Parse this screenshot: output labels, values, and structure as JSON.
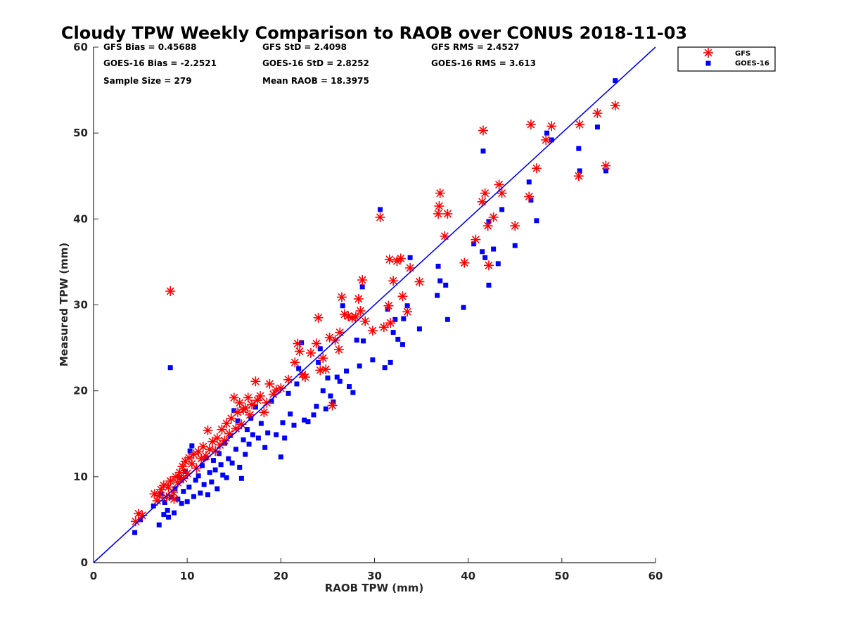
{
  "chart_data": {
    "type": "scatter",
    "title": "Cloudy TPW Weekly Comparison to RAOB over CONUS 2018-11-03",
    "xlabel": "RAOB TPW (mm)",
    "ylabel": "Measured TPW (mm)",
    "xlim": [
      0,
      60
    ],
    "ylim": [
      0,
      60
    ],
    "xticks": [
      "0",
      "10",
      "20",
      "30",
      "40",
      "50",
      "60"
    ],
    "yticks": [
      "0",
      "10",
      "20",
      "30",
      "40",
      "50",
      "60"
    ],
    "grid": false,
    "legend_position": "outside-top-right",
    "reference_line": {
      "from": [
        0,
        0
      ],
      "to": [
        60,
        60
      ],
      "color": "#0000ff"
    },
    "stats": [
      [
        "GFS Bias = 0.45688",
        "GFS StD = 2.4098",
        "GFS RMS = 2.4527"
      ],
      [
        "GOES-16 Bias = -2.2521",
        "GOES-16 StD = 2.8252",
        "GOES-16 RMS = 3.613"
      ],
      [
        "Sample Size = 279",
        "Mean RAOB = 18.3975",
        ""
      ]
    ],
    "series": [
      {
        "name": "GFS",
        "marker": "asterisk",
        "color": "#ff0000",
        "points": [
          [
            4.5,
            4.8
          ],
          [
            4.8,
            5.7
          ],
          [
            5.2,
            5.5
          ],
          [
            6.5,
            8.0
          ],
          [
            6.8,
            7.2
          ],
          [
            7.0,
            7.8
          ],
          [
            7.2,
            8.5
          ],
          [
            7.5,
            9.0
          ],
          [
            7.8,
            7.6
          ],
          [
            8.0,
            8.8
          ],
          [
            8.2,
            9.5
          ],
          [
            8.5,
            8.2
          ],
          [
            8.6,
            7.4
          ],
          [
            8.8,
            10.0
          ],
          [
            9.0,
            9.3
          ],
          [
            9.2,
            10.5
          ],
          [
            9.5,
            11.2
          ],
          [
            9.6,
            9.8
          ],
          [
            9.8,
            11.8
          ],
          [
            10.0,
            10.4
          ],
          [
            10.2,
            12.2
          ],
          [
            10.5,
            11.5
          ],
          [
            10.7,
            12.6
          ],
          [
            11.0,
            11.0
          ],
          [
            11.2,
            12.9
          ],
          [
            11.5,
            12.1
          ],
          [
            11.7,
            13.5
          ],
          [
            12.0,
            12.4
          ],
          [
            12.2,
            15.4
          ],
          [
            12.4,
            13.2
          ],
          [
            12.7,
            14.1
          ],
          [
            13.0,
            13.0
          ],
          [
            13.2,
            14.5
          ],
          [
            13.5,
            13.7
          ],
          [
            13.7,
            15.5
          ],
          [
            14.0,
            14.2
          ],
          [
            14.2,
            16.2
          ],
          [
            14.5,
            15.0
          ],
          [
            14.7,
            16.8
          ],
          [
            15.0,
            19.2
          ],
          [
            15.2,
            15.6
          ],
          [
            15.4,
            17.5
          ],
          [
            15.6,
            18.6
          ],
          [
            15.8,
            16.1
          ],
          [
            16.0,
            17.8
          ],
          [
            16.2,
            18.0
          ],
          [
            16.5,
            19.2
          ],
          [
            16.7,
            17.2
          ],
          [
            16.9,
            18.4
          ],
          [
            17.3,
            21.1
          ],
          [
            17.5,
            18.9
          ],
          [
            17.8,
            19.4
          ],
          [
            18.2,
            17.5
          ],
          [
            18.5,
            18.6
          ],
          [
            18.8,
            20.8
          ],
          [
            19.2,
            19.6
          ],
          [
            19.5,
            20.1
          ],
          [
            20.0,
            20.3
          ],
          [
            8.2,
            31.6
          ],
          [
            20.8,
            21.3
          ],
          [
            21.5,
            23.3
          ],
          [
            21.8,
            25.5
          ],
          [
            22.0,
            24.6
          ],
          [
            22.3,
            21.9
          ],
          [
            22.6,
            21.6
          ],
          [
            23.2,
            24.4
          ],
          [
            23.8,
            25.5
          ],
          [
            24.0,
            28.5
          ],
          [
            24.2,
            22.4
          ],
          [
            24.5,
            23.8
          ],
          [
            24.8,
            22.5
          ],
          [
            25.2,
            26.2
          ],
          [
            25.5,
            18.3
          ],
          [
            25.8,
            25.9
          ],
          [
            26.2,
            24.8
          ],
          [
            26.3,
            26.8
          ],
          [
            26.5,
            30.9
          ],
          [
            26.8,
            28.9
          ],
          [
            27.2,
            28.7
          ],
          [
            27.6,
            28.5
          ],
          [
            28.0,
            28.6
          ],
          [
            28.3,
            30.7
          ],
          [
            28.5,
            29.3
          ],
          [
            28.7,
            32.9
          ],
          [
            29.0,
            28.1
          ],
          [
            29.8,
            27.0
          ],
          [
            30.6,
            40.2
          ],
          [
            31.0,
            27.4
          ],
          [
            31.5,
            29.9
          ],
          [
            31.6,
            35.3
          ],
          [
            31.7,
            27.9
          ],
          [
            32.0,
            32.8
          ],
          [
            32.4,
            35.1
          ],
          [
            32.8,
            35.4
          ],
          [
            33.0,
            31.0
          ],
          [
            33.5,
            29.2
          ],
          [
            33.8,
            34.3
          ],
          [
            34.8,
            32.7
          ],
          [
            36.8,
            40.6
          ],
          [
            36.9,
            41.5
          ],
          [
            37.0,
            43.0
          ],
          [
            37.5,
            38.0
          ],
          [
            37.8,
            40.6
          ],
          [
            39.6,
            34.9
          ],
          [
            40.8,
            37.6
          ],
          [
            41.5,
            42.0
          ],
          [
            41.6,
            50.3
          ],
          [
            41.8,
            43.0
          ],
          [
            42.1,
            39.2
          ],
          [
            42.2,
            34.6
          ],
          [
            42.7,
            40.2
          ],
          [
            43.3,
            44.0
          ],
          [
            43.6,
            43.0
          ],
          [
            45.0,
            39.2
          ],
          [
            46.5,
            42.6
          ],
          [
            46.7,
            51.0
          ],
          [
            47.3,
            45.9
          ],
          [
            48.3,
            49.2
          ],
          [
            48.9,
            50.8
          ],
          [
            51.8,
            45.0
          ],
          [
            51.9,
            51.0
          ],
          [
            53.8,
            52.3
          ],
          [
            54.7,
            46.2
          ],
          [
            55.7,
            53.2
          ]
        ]
      },
      {
        "name": "GOES-16",
        "marker": "square",
        "color": "#0000ff",
        "points": [
          [
            4.4,
            3.5
          ],
          [
            5.0,
            5.0
          ],
          [
            6.4,
            6.6
          ],
          [
            7.0,
            4.4
          ],
          [
            7.2,
            8.0
          ],
          [
            7.5,
            5.6
          ],
          [
            7.6,
            7.0
          ],
          [
            7.9,
            6.1
          ],
          [
            8.0,
            5.3
          ],
          [
            8.2,
            22.7
          ],
          [
            8.3,
            7.6
          ],
          [
            8.6,
            5.8
          ],
          [
            8.7,
            8.6
          ],
          [
            9.0,
            7.4
          ],
          [
            9.2,
            9.9
          ],
          [
            9.4,
            6.9
          ],
          [
            9.6,
            8.3
          ],
          [
            9.8,
            10.6
          ],
          [
            10.0,
            7.1
          ],
          [
            10.2,
            8.8
          ],
          [
            10.3,
            13.0
          ],
          [
            10.5,
            13.6
          ],
          [
            10.7,
            7.7
          ],
          [
            10.9,
            9.6
          ],
          [
            11.2,
            10.1
          ],
          [
            11.4,
            8.1
          ],
          [
            11.6,
            11.3
          ],
          [
            11.8,
            9.1
          ],
          [
            12.0,
            12.2
          ],
          [
            12.2,
            7.9
          ],
          [
            12.4,
            10.5
          ],
          [
            12.6,
            9.4
          ],
          [
            12.8,
            11.9
          ],
          [
            13.0,
            10.8
          ],
          [
            13.2,
            8.6
          ],
          [
            13.4,
            12.7
          ],
          [
            13.6,
            11.4
          ],
          [
            13.8,
            10.2
          ],
          [
            14.0,
            13.9
          ],
          [
            14.2,
            9.9
          ],
          [
            14.4,
            12.1
          ],
          [
            14.6,
            14.8
          ],
          [
            14.8,
            11.6
          ],
          [
            15.0,
            17.7
          ],
          [
            15.2,
            13.2
          ],
          [
            15.4,
            16.5
          ],
          [
            15.6,
            11.1
          ],
          [
            15.8,
            9.8
          ],
          [
            16.0,
            14.3
          ],
          [
            16.2,
            12.6
          ],
          [
            16.4,
            15.5
          ],
          [
            16.6,
            13.8
          ],
          [
            16.8,
            16.8
          ],
          [
            17.0,
            14.9
          ],
          [
            17.3,
            18.1
          ],
          [
            17.6,
            14.5
          ],
          [
            17.9,
            16.2
          ],
          [
            18.3,
            13.4
          ],
          [
            18.6,
            15.1
          ],
          [
            19.0,
            18.8
          ],
          [
            19.5,
            14.9
          ],
          [
            20.0,
            12.3
          ],
          [
            20.2,
            16.3
          ],
          [
            20.4,
            14.5
          ],
          [
            20.8,
            19.7
          ],
          [
            21.0,
            17.3
          ],
          [
            21.4,
            16.0
          ],
          [
            21.7,
            20.8
          ],
          [
            21.9,
            22.6
          ],
          [
            22.2,
            25.6
          ],
          [
            22.5,
            16.6
          ],
          [
            22.9,
            16.4
          ],
          [
            23.5,
            17.2
          ],
          [
            23.8,
            18.2
          ],
          [
            24.0,
            23.3
          ],
          [
            24.2,
            24.9
          ],
          [
            24.5,
            20.0
          ],
          [
            24.8,
            17.9
          ],
          [
            25.0,
            21.5
          ],
          [
            25.3,
            19.4
          ],
          [
            25.6,
            18.7
          ],
          [
            26.0,
            21.6
          ],
          [
            26.3,
            21.1
          ],
          [
            26.6,
            29.9
          ],
          [
            27.0,
            22.3
          ],
          [
            27.3,
            20.5
          ],
          [
            27.7,
            19.8
          ],
          [
            28.1,
            25.9
          ],
          [
            28.4,
            22.9
          ],
          [
            28.7,
            32.1
          ],
          [
            28.8,
            25.8
          ],
          [
            29.8,
            23.6
          ],
          [
            30.6,
            41.1
          ],
          [
            31.1,
            22.7
          ],
          [
            31.4,
            29.5
          ],
          [
            31.7,
            23.3
          ],
          [
            32.0,
            26.8
          ],
          [
            32.2,
            28.3
          ],
          [
            32.5,
            26.0
          ],
          [
            33.0,
            25.4
          ],
          [
            33.1,
            28.4
          ],
          [
            33.5,
            29.9
          ],
          [
            33.8,
            35.5
          ],
          [
            34.8,
            27.2
          ],
          [
            36.7,
            31.1
          ],
          [
            36.8,
            34.5
          ],
          [
            37.0,
            32.8
          ],
          [
            37.6,
            32.3
          ],
          [
            37.8,
            28.3
          ],
          [
            39.5,
            29.7
          ],
          [
            40.6,
            37.1
          ],
          [
            41.5,
            36.2
          ],
          [
            41.6,
            47.9
          ],
          [
            41.8,
            35.5
          ],
          [
            42.2,
            39.7
          ],
          [
            42.2,
            32.3
          ],
          [
            42.7,
            36.5
          ],
          [
            43.2,
            34.8
          ],
          [
            43.6,
            41.1
          ],
          [
            45.0,
            36.9
          ],
          [
            46.5,
            44.3
          ],
          [
            46.7,
            42.2
          ],
          [
            47.3,
            39.8
          ],
          [
            48.4,
            50.0
          ],
          [
            48.9,
            49.2
          ],
          [
            51.8,
            48.2
          ],
          [
            51.9,
            45.6
          ],
          [
            53.8,
            50.7
          ],
          [
            54.7,
            45.6
          ],
          [
            55.7,
            56.1
          ]
        ]
      }
    ]
  }
}
